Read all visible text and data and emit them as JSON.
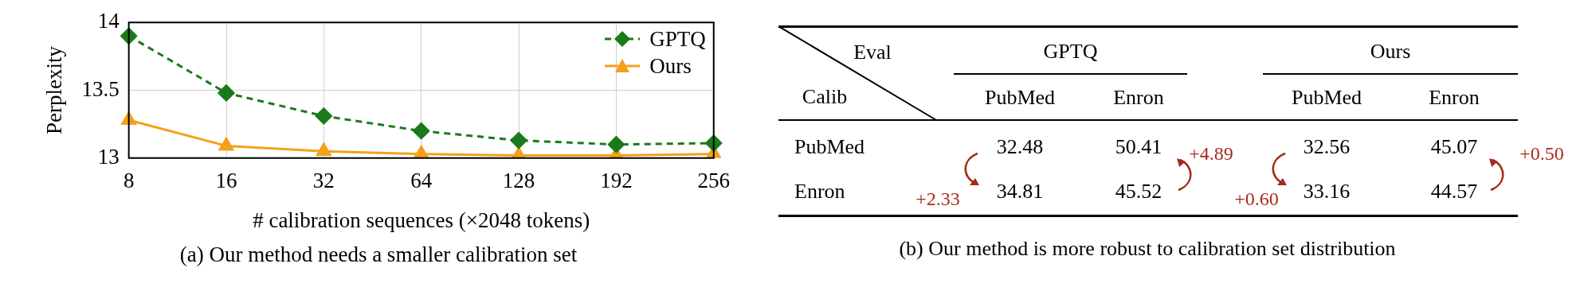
{
  "chart_data": [
    {
      "type": "line",
      "title": "(a) Our method needs a smaller calibration set",
      "xlabel": "# calibration sequences (×2048 tokens)",
      "ylabel": "Perplexity",
      "categories": [
        "8",
        "16",
        "32",
        "64",
        "128",
        "192",
        "256"
      ],
      "series": [
        {
          "name": "GPTQ",
          "color": "#1a7a1a",
          "marker": "diamond",
          "line_style": "dashed",
          "values": [
            13.9,
            13.48,
            13.31,
            13.2,
            13.13,
            13.1,
            13.11
          ]
        },
        {
          "name": "Ours",
          "color": "#f5a01c",
          "marker": "triangle",
          "line_style": "solid",
          "values": [
            13.28,
            13.09,
            13.05,
            13.03,
            13.02,
            13.02,
            13.03
          ]
        }
      ],
      "ylim": [
        13,
        14
      ],
      "yticks": [
        13,
        13.5,
        14
      ],
      "grid": true,
      "legend": "top right"
    },
    {
      "type": "heatmap",
      "title": "(b) Our method is more robust to calibration set distribution",
      "xlabel": "Eval",
      "ylabel": "Calib",
      "categories": [
        "PubMed",
        "Enron",
        "PubMed",
        "Enron"
      ],
      "y_categories": [
        "PubMed",
        "Enron"
      ],
      "cells": [
        [
          32.48,
          50.41,
          32.56,
          45.07
        ],
        [
          34.81,
          45.52,
          33.16,
          44.57
        ]
      ],
      "data_labels": true,
      "annotations": [
        "GPTQ",
        "Ours",
        "+2.33",
        "+4.89",
        "+0.60",
        "+0.50"
      ]
    }
  ]
}
